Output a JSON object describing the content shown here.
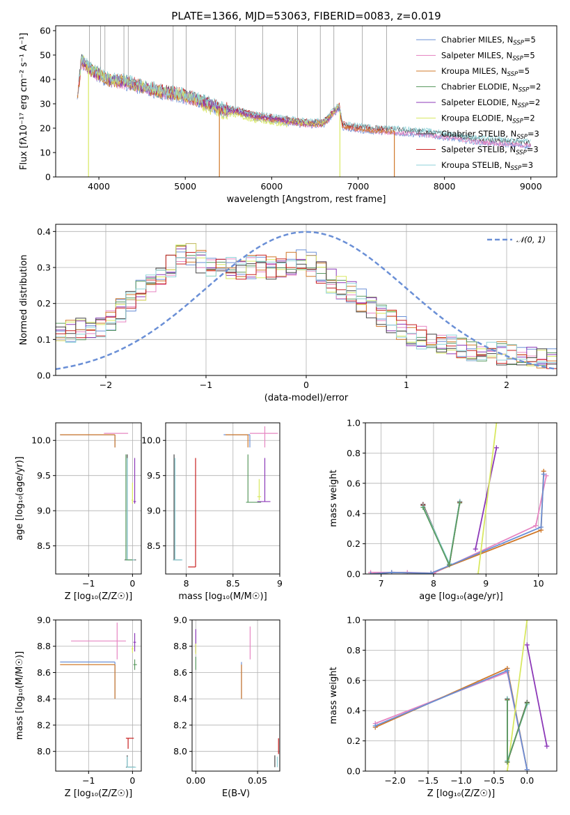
{
  "chart_data": [
    {
      "id": "spectrum",
      "type": "line",
      "title": "PLATE=1366, MJD=53063, FIBERID=0083, z=0.019",
      "xlabel": "wavelength [Angstrom, rest frame]",
      "ylabel": "Flux [fλ10⁻¹⁷ erg cm⁻² s⁻¹ A⁻¹]",
      "xlim": [
        3500,
        9300
      ],
      "ylim": [
        0,
        62
      ],
      "xticks": [
        4000,
        5000,
        6000,
        7000,
        8000,
        9000
      ],
      "yticks": [
        0,
        10,
        20,
        30,
        40,
        50,
        60
      ],
      "grid": false,
      "legend_position": "top-right",
      "spectrum_anchors": {
        "x": [
          3750,
          3800,
          3900,
          4000,
          4100,
          4300,
          4500,
          4700,
          4900,
          5000,
          5200,
          5400,
          5600,
          5800,
          6000,
          6200,
          6400,
          6600,
          6780,
          6820,
          7000,
          7200,
          7400,
          7600,
          7800,
          8000,
          8200,
          8400,
          8600,
          8800,
          9000
        ],
        "y": [
          32,
          48,
          44,
          42,
          40,
          39,
          37,
          35,
          34,
          33,
          31,
          28,
          27,
          25,
          24,
          23,
          22,
          22,
          29,
          21,
          20,
          19.5,
          19,
          18.5,
          18,
          17,
          16,
          15,
          14.5,
          14,
          13.5
        ]
      },
      "series": [
        {
          "name": "Chabrier MILES, N_SSP=5",
          "label_main": "Chabrier MILES, N",
          "label_sub": "SSP",
          "label_tail": "=5",
          "color": "#6a8fd6"
        },
        {
          "name": "Salpeter MILES, N_SSP=5",
          "label_main": "Salpeter MILES, N",
          "label_sub": "SSP",
          "label_tail": "=5",
          "color": "#e685c2"
        },
        {
          "name": "Kroupa MILES, N_SSP=5",
          "label_main": "Kroupa MILES, N",
          "label_sub": "SSP",
          "label_tail": "=5",
          "color": "#d07828"
        },
        {
          "name": "Chabrier ELODIE, N_SSP=2",
          "label_main": "Chabrier ELODIE, N",
          "label_sub": "SSP",
          "label_tail": "=2",
          "color": "#5a9a60"
        },
        {
          "name": "Salpeter ELODIE, N_SSP=2",
          "label_main": "Salpeter ELODIE, N",
          "label_sub": "SSP",
          "label_tail": "=2",
          "color": "#8c38b8"
        },
        {
          "name": "Kroupa ELODIE, N_SSP=2",
          "label_main": "Kroupa ELODIE, N",
          "label_sub": "SSP",
          "label_tail": "=2",
          "color": "#d8e860"
        },
        {
          "name": "Chabrier STELIB, N_SSP=3",
          "label_main": "Chabrier STELIB, N",
          "label_sub": "SSP",
          "label_tail": "=3",
          "color": "#444444"
        },
        {
          "name": "Salpeter STELIB, N_SSP=3",
          "label_main": "Salpeter STELIB, N",
          "label_sub": "SSP",
          "label_tail": "=3",
          "color": "#c81e1e"
        },
        {
          "name": "Kroupa STELIB, N_SSP=3",
          "label_main": "Kroupa STELIB, N",
          "label_sub": "SSP",
          "label_tail": "=3",
          "color": "#8ed2d8"
        }
      ]
    },
    {
      "id": "residuals",
      "type": "line",
      "xlabel": "(data-model)/error",
      "ylabel": "Normed distribution",
      "xlim": [
        -2.5,
        2.5
      ],
      "ylim": [
        0,
        0.42
      ],
      "xticks": [
        -2,
        -1,
        0,
        1,
        2
      ],
      "yticks": [
        0.0,
        0.1,
        0.2,
        0.3,
        0.4
      ],
      "grid": true,
      "legend_position": "top-right",
      "gaussian_label": "𝒩(0, 1)",
      "gaussian_color": "#6a8fd6",
      "bin_width": 0.1,
      "hist_envelope": {
        "x": [
          -2.5,
          -2.0,
          -1.5,
          -1.2,
          -1.0,
          -0.7,
          -0.4,
          -0.2,
          0.0,
          0.3,
          0.5,
          0.8,
          1.0,
          1.5,
          2.0,
          2.5
        ],
        "y": [
          0.12,
          0.14,
          0.27,
          0.34,
          0.31,
          0.3,
          0.3,
          0.31,
          0.32,
          0.25,
          0.22,
          0.16,
          0.12,
          0.08,
          0.06,
          0.04
        ]
      }
    },
    {
      "id": "age-vs-Z",
      "type": "scatter",
      "xlabel": "Z [log₁₀(Z/Z☉)]",
      "ylabel": "age  [log₁₀(age/yr)]",
      "xlim": [
        -1.75,
        0.2
      ],
      "ylim": [
        8.1,
        10.25
      ],
      "xticks": [
        -1,
        0
      ],
      "xtick_labels": [
        "−1",
        "0"
      ],
      "yticks": [
        8.5,
        9.0,
        9.5,
        10.0
      ],
      "grid": true,
      "errorbars": [
        {
          "series": 0,
          "x": -0.4,
          "y": 10.08,
          "x_lo": -1.65,
          "x_hi": -0.4,
          "y_lo": 9.9,
          "y_hi": 10.08
        },
        {
          "series": 2,
          "x": -0.4,
          "y": 10.08,
          "x_lo": -1.65,
          "x_hi": -0.4,
          "y_lo": 9.9,
          "y_hi": 10.08
        },
        {
          "series": 1,
          "x": -0.35,
          "y": 10.1,
          "x_lo": -0.65,
          "x_hi": -0.1,
          "y_lo": 10.1,
          "y_hi": 10.1
        },
        {
          "series": 6,
          "x": -0.12,
          "y": 8.3,
          "x_lo": -0.18,
          "x_hi": 0.08,
          "y_lo": 8.3,
          "y_hi": 9.8
        },
        {
          "series": 8,
          "x": -0.12,
          "y": 8.3,
          "x_lo": -0.16,
          "x_hi": 0.05,
          "y_lo": 8.3,
          "y_hi": 9.75
        },
        {
          "series": 3,
          "x": -0.15,
          "y": 8.3,
          "x_lo": -0.15,
          "x_hi": 0.0,
          "y_lo": 8.3,
          "y_hi": 9.8
        },
        {
          "series": 4,
          "x": 0.05,
          "y": 9.13,
          "x_lo": 0.02,
          "x_hi": 0.08,
          "y_lo": 9.1,
          "y_hi": 9.75
        },
        {
          "series": 5,
          "x": 0.0,
          "y": 9.15,
          "x_lo": -0.02,
          "x_hi": 0.02,
          "y_lo": 9.1,
          "y_hi": 9.4
        }
      ]
    },
    {
      "id": "age-vs-mass",
      "type": "scatter",
      "xlabel": "mass [log₁₀(M/M☉)]",
      "xlim": [
        7.78,
        9.0
      ],
      "ylim": [
        8.1,
        10.25
      ],
      "xticks": [
        8.0,
        8.5,
        9.0
      ],
      "yticks": [
        8.5,
        9.0,
        9.5,
        10.0
      ],
      "grid": true,
      "errorbars": [
        {
          "series": 0,
          "x": 8.68,
          "y": 10.08,
          "x_lo": 8.4,
          "x_hi": 8.68,
          "y_lo": 9.9,
          "y_hi": 10.08
        },
        {
          "series": 2,
          "x": 8.66,
          "y": 10.08,
          "x_lo": 8.42,
          "x_hi": 8.66,
          "y_lo": 9.9,
          "y_hi": 10.08
        },
        {
          "series": 1,
          "x": 8.84,
          "y": 10.1,
          "x_lo": 8.68,
          "x_hi": 8.98,
          "y_lo": 9.9,
          "y_hi": 10.2
        },
        {
          "series": 6,
          "x": 7.87,
          "y": 8.3,
          "x_lo": 7.86,
          "x_hi": 7.95,
          "y_lo": 8.3,
          "y_hi": 9.8
        },
        {
          "series": 8,
          "x": 7.88,
          "y": 8.3,
          "x_lo": 7.86,
          "x_hi": 7.96,
          "y_lo": 8.3,
          "y_hi": 9.75
        },
        {
          "series": 7,
          "x": 8.1,
          "y": 8.2,
          "x_lo": 8.02,
          "x_hi": 8.1,
          "y_lo": 8.2,
          "y_hi": 9.75
        },
        {
          "series": 3,
          "x": 8.66,
          "y": 9.12,
          "x_lo": 8.64,
          "x_hi": 8.8,
          "y_lo": 9.12,
          "y_hi": 9.8
        },
        {
          "series": 4,
          "x": 8.84,
          "y": 9.13,
          "x_lo": 8.76,
          "x_hi": 8.9,
          "y_lo": 9.13,
          "y_hi": 9.75
        },
        {
          "series": 5,
          "x": 8.78,
          "y": 9.2,
          "x_lo": 8.76,
          "x_hi": 8.8,
          "y_lo": 9.15,
          "y_hi": 9.45
        }
      ]
    },
    {
      "id": "weight-vs-age",
      "type": "line",
      "xlabel": "age  [log₁₀(age/yr)]",
      "ylabel": "mass weight",
      "xlim": [
        6.7,
        10.35
      ],
      "ylim": [
        0,
        1.0
      ],
      "xticks": [
        7,
        8,
        9,
        10
      ],
      "yticks": [
        0.0,
        0.2,
        0.4,
        0.6,
        0.8,
        1.0
      ],
      "grid": true,
      "lines": [
        {
          "series": 1,
          "x": [
            6.8,
            7.2,
            7.5,
            8.0,
            9.95,
            10.15
          ],
          "y": [
            0.01,
            0.01,
            0.01,
            0.005,
            0.32,
            0.65
          ]
        },
        {
          "series": 2,
          "x": [
            6.8,
            7.2,
            7.95,
            10.05,
            10.1
          ],
          "y": [
            0.0,
            0.01,
            0.005,
            0.29,
            0.68
          ]
        },
        {
          "series": 0,
          "x": [
            6.8,
            7.2,
            7.95,
            10.05,
            10.1
          ],
          "y": [
            0.0,
            0.01,
            0.005,
            0.31,
            0.66
          ]
        },
        {
          "series": 4,
          "x": [
            8.8,
            9.2
          ],
          "y": [
            0.165,
            0.835
          ]
        },
        {
          "series": 5,
          "x": [
            8.85,
            9.2
          ],
          "y": [
            0.0,
            1.0
          ]
        },
        {
          "series": 6,
          "x": [
            7.8,
            8.3,
            8.5
          ],
          "y": [
            0.46,
            0.06,
            0.48
          ]
        },
        {
          "series": 7,
          "x": [
            7.8,
            8.3,
            8.5
          ],
          "y": [
            0.455,
            0.06,
            0.475
          ]
        },
        {
          "series": 8,
          "x": [
            7.8,
            8.3,
            8.5
          ],
          "y": [
            0.45,
            0.07,
            0.48
          ]
        },
        {
          "series": 3,
          "x": [
            7.8,
            8.3,
            8.5
          ],
          "y": [
            0.44,
            0.06,
            0.47
          ]
        }
      ]
    },
    {
      "id": "mass-vs-Z",
      "type": "scatter",
      "xlabel": "Z [log₁₀(Z/Z☉)]",
      "ylabel": "mass [log₁₀(M/M☉)]",
      "xlim": [
        -1.75,
        0.2
      ],
      "ylim": [
        7.85,
        9.0
      ],
      "xticks": [
        -1,
        0
      ],
      "xtick_labels": [
        "−1",
        "0"
      ],
      "yticks": [
        8.0,
        8.2,
        8.4,
        8.6,
        8.8,
        9.0
      ],
      "grid": true,
      "errorbars": [
        {
          "series": 0,
          "x": -0.4,
          "y": 8.68,
          "x_lo": -1.65,
          "x_hi": -0.4,
          "y_lo": 8.4,
          "y_hi": 8.68
        },
        {
          "series": 2,
          "x": -0.4,
          "y": 8.66,
          "x_lo": -1.65,
          "x_hi": -0.4,
          "y_lo": 8.4,
          "y_hi": 8.66
        },
        {
          "series": 1,
          "x": -0.35,
          "y": 8.84,
          "x_lo": -1.4,
          "x_hi": -0.15,
          "y_lo": 8.7,
          "y_hi": 8.98
        },
        {
          "series": 4,
          "x": 0.05,
          "y": 8.83,
          "x_lo": 0.02,
          "x_hi": 0.08,
          "y_lo": 8.76,
          "y_hi": 8.9
        },
        {
          "series": 3,
          "x": 0.05,
          "y": 8.66,
          "x_lo": 0.02,
          "x_hi": 0.1,
          "y_lo": 8.62,
          "y_hi": 8.7
        },
        {
          "series": 5,
          "x": 0.0,
          "y": 8.78,
          "x_lo": -0.02,
          "x_hi": 0.02,
          "y_lo": 8.75,
          "y_hi": 8.8
        },
        {
          "series": 7,
          "x": -0.1,
          "y": 8.1,
          "x_lo": -0.15,
          "x_hi": 0.03,
          "y_lo": 8.02,
          "y_hi": 8.1
        },
        {
          "series": 6,
          "x": -0.12,
          "y": 7.88,
          "x_lo": -0.15,
          "x_hi": 0.05,
          "y_lo": 7.88,
          "y_hi": 7.97
        },
        {
          "series": 8,
          "x": -0.12,
          "y": 7.88,
          "x_lo": -0.14,
          "x_hi": 0.08,
          "y_lo": 7.88,
          "y_hi": 7.96
        }
      ]
    },
    {
      "id": "mass-vs-EBV",
      "type": "scatter",
      "xlabel": "E(B-V)",
      "xlim": [
        -0.003,
        0.068
      ],
      "ylim": [
        7.85,
        9.0
      ],
      "xticks": [
        0.0,
        0.05
      ],
      "xtick_labels": [
        "0.00",
        "0.05"
      ],
      "yticks": [
        8.0,
        8.2,
        8.4,
        8.6,
        8.8,
        9.0
      ],
      "grid": true,
      "errorbars": [
        {
          "series": 4,
          "x": 0.0,
          "y": 8.84,
          "x_lo": 0.0,
          "x_hi": 0.0,
          "y_lo": 8.75,
          "y_hi": 8.93
        },
        {
          "series": 3,
          "x": 0.0,
          "y": 8.66,
          "x_lo": 0.0,
          "x_hi": 0.0,
          "y_lo": 8.62,
          "y_hi": 8.72
        },
        {
          "series": 5,
          "x": 0.0,
          "y": 8.78,
          "x_lo": 0.0,
          "x_hi": 0.0,
          "y_lo": 8.74,
          "y_hi": 8.82
        },
        {
          "series": 0,
          "x": 0.037,
          "y": 8.66,
          "x_lo": 0.037,
          "x_hi": 0.037,
          "y_lo": 8.4,
          "y_hi": 8.68
        },
        {
          "series": 2,
          "x": 0.037,
          "y": 8.6,
          "x_lo": 0.037,
          "x_hi": 0.037,
          "y_lo": 8.4,
          "y_hi": 8.66
        },
        {
          "series": 1,
          "x": 0.044,
          "y": 8.84,
          "x_lo": 0.044,
          "x_hi": 0.044,
          "y_lo": 8.7,
          "y_hi": 8.95
        },
        {
          "series": 7,
          "x": 0.067,
          "y": 8.02,
          "x_lo": 0.067,
          "x_hi": 0.067,
          "y_lo": 7.98,
          "y_hi": 8.1
        },
        {
          "series": 6,
          "x": 0.064,
          "y": 7.88,
          "x_lo": 0.064,
          "x_hi": 0.064,
          "y_lo": 7.88,
          "y_hi": 7.97
        },
        {
          "series": 8,
          "x": 0.066,
          "y": 7.88,
          "x_lo": 0.066,
          "x_hi": 0.066,
          "y_lo": 7.88,
          "y_hi": 7.96
        }
      ]
    },
    {
      "id": "weight-vs-Z",
      "type": "line",
      "xlabel": "Z [log₁₀(Z/Z☉)]",
      "ylabel": "mass weight",
      "xlim": [
        -2.45,
        0.45
      ],
      "ylim": [
        0,
        1.0
      ],
      "xticks": [
        -2.0,
        -1.5,
        -1.0,
        -0.5,
        0.0
      ],
      "xtick_labels": [
        "−2.0",
        "−1.5",
        "−1.0",
        "−0.5",
        "0.0"
      ],
      "yticks": [
        0.0,
        0.2,
        0.4,
        0.6,
        0.8,
        1.0
      ],
      "grid": true,
      "lines": [
        {
          "series": 1,
          "x": [
            -2.3,
            -0.3,
            0.0,
            0.0
          ],
          "y": [
            0.315,
            0.655,
            0.01,
            0.01
          ]
        },
        {
          "series": 2,
          "x": [
            -2.3,
            -0.3,
            0.0
          ],
          "y": [
            0.29,
            0.68,
            0.01
          ]
        },
        {
          "series": 0,
          "x": [
            -2.3,
            -0.3,
            0.0
          ],
          "y": [
            0.3,
            0.665,
            0.01
          ]
        },
        {
          "series": 4,
          "x": [
            0.0,
            0.3
          ],
          "y": [
            0.835,
            0.165
          ]
        },
        {
          "series": 5,
          "x": [
            -0.3,
            0.0
          ],
          "y": [
            0.0,
            1.0
          ]
        },
        {
          "series": 6,
          "x": [
            -0.3,
            -0.3,
            0.0
          ],
          "y": [
            0.48,
            0.06,
            0.455
          ]
        },
        {
          "series": 7,
          "x": [
            -0.3,
            -0.3,
            0.0
          ],
          "y": [
            0.475,
            0.06,
            0.45
          ]
        },
        {
          "series": 8,
          "x": [
            -0.3,
            -0.3,
            0.0
          ],
          "y": [
            0.48,
            0.07,
            0.44
          ]
        },
        {
          "series": 3,
          "x": [
            -0.3,
            -0.3,
            0.0
          ],
          "y": [
            0.47,
            0.06,
            0.45
          ]
        }
      ]
    }
  ]
}
